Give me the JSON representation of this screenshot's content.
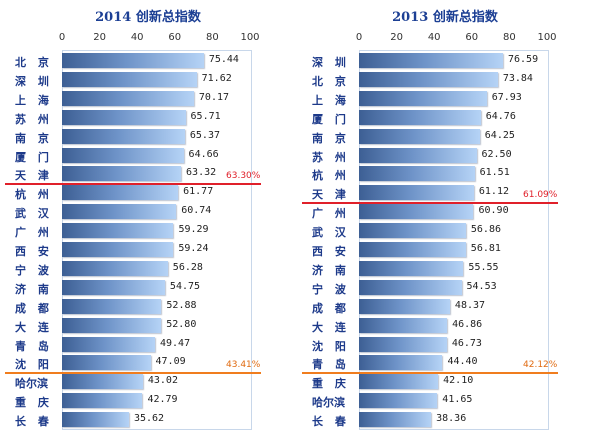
{
  "chart_data": [
    {
      "type": "bar",
      "title": "2014 创新总指数",
      "xlim": [
        0,
        100
      ],
      "ticks": [
        "0",
        "20",
        "40",
        "60",
        "80",
        "100"
      ],
      "categories": [
        "北 京",
        "深 圳",
        "上 海",
        "苏 州",
        "南 京",
        "厦 门",
        "天 津",
        "杭 州",
        "武 汉",
        "广 州",
        "西 安",
        "宁 波",
        "济 南",
        "成 都",
        "大 连",
        "青 岛",
        "沈 阳",
        "哈尔滨",
        "重 庆",
        "长 春"
      ],
      "values": [
        75.44,
        71.62,
        70.17,
        65.71,
        65.37,
        64.66,
        63.32,
        61.77,
        60.74,
        59.29,
        59.24,
        56.28,
        54.75,
        52.88,
        52.8,
        49.47,
        47.09,
        43.02,
        42.79,
        35.62
      ],
      "value_labels": [
        "75.44",
        "71.62",
        "70.17",
        "65.71",
        "65.37",
        "64.66",
        "63.32",
        "61.77",
        "60.74",
        "59.29",
        "59.24",
        "56.28",
        "54.75",
        "52.88",
        "52.80",
        "49.47",
        "47.09",
        "43.02",
        "42.79",
        "35.62"
      ],
      "markers": [
        {
          "after_index": 6,
          "label": "63.30%",
          "line_color": "#e0202a",
          "label_color": "#e0202a"
        },
        {
          "after_index": 16,
          "label": "43.41%",
          "line_color": "#f07d1e",
          "label_color": "#e06a10"
        }
      ]
    },
    {
      "type": "bar",
      "title": "2013 创新总指数",
      "xlim": [
        0,
        100
      ],
      "ticks": [
        "0",
        "20",
        "40",
        "60",
        "80",
        "100"
      ],
      "categories": [
        "深 圳",
        "北 京",
        "上 海",
        "厦 门",
        "南 京",
        "苏 州",
        "杭 州",
        "天 津",
        "广 州",
        "武 汉",
        "西 安",
        "济 南",
        "宁 波",
        "成 都",
        "大 连",
        "沈 阳",
        "青 岛",
        "重 庆",
        "哈尔滨",
        "长 春"
      ],
      "values": [
        76.59,
        73.84,
        67.93,
        64.76,
        64.25,
        62.5,
        61.51,
        61.12,
        60.9,
        56.86,
        56.81,
        55.55,
        54.53,
        48.37,
        46.86,
        46.73,
        44.4,
        42.1,
        41.65,
        38.36
      ],
      "value_labels": [
        "76.59",
        "73.84",
        "67.93",
        "64.76",
        "64.25",
        "62.50",
        "61.51",
        "61.12",
        "60.90",
        "56.86",
        "56.81",
        "55.55",
        "54.53",
        "48.37",
        "46.86",
        "46.73",
        "44.40",
        "42.10",
        "41.65",
        "38.36"
      ],
      "markers": [
        {
          "after_index": 7,
          "label": "61.09%",
          "line_color": "#e0202a",
          "label_color": "#e0202a"
        },
        {
          "after_index": 16,
          "label": "42.12%",
          "line_color": "#f07d1e",
          "label_color": "#e06a10"
        }
      ]
    }
  ]
}
